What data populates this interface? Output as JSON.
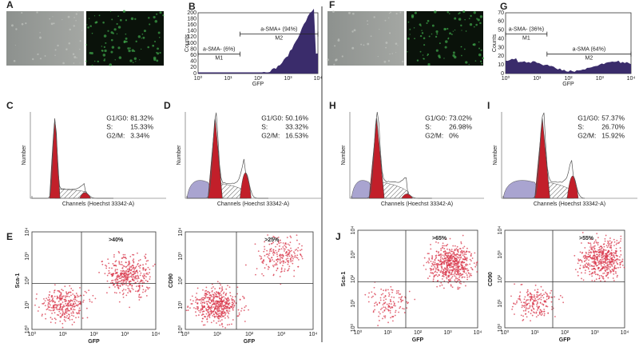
{
  "panels": [
    {
      "type": "images",
      "letter": "A"
    },
    {
      "type": "histogram",
      "letter": "B",
      "ylabel": "Counts",
      "xlabel": "GFP",
      "yticks": [
        "0",
        "20",
        "40",
        "60",
        "80",
        "100",
        "120",
        "140",
        "160",
        "180",
        "200"
      ],
      "xticks": [
        "10⁰",
        "10¹",
        "10²",
        "10³",
        "10⁴"
      ],
      "gates": [
        {
          "label": "a-SMA- (6%)",
          "marker": "M1"
        },
        {
          "label": "a-SMA+ (94%)",
          "marker": "M2"
        }
      ]
    },
    {
      "type": "cellcycle",
      "letter": "C",
      "ylabel": "Number",
      "xlabel": "Channels (Hoechst 33342-A)",
      "stats": [
        [
          "G1/G0:",
          "81.32%"
        ],
        [
          "S:",
          "15.33%"
        ],
        [
          "G2/M:",
          "3.34%"
        ]
      ]
    },
    {
      "type": "cellcycle",
      "letter": "D",
      "ylabel": "Number",
      "xlabel": "Channels (Hoechst 33342-A)",
      "stats": [
        [
          "G1/G0:",
          "50.16%"
        ],
        [
          "S:",
          "33.32%"
        ],
        [
          "G2/M:",
          "16.53%"
        ]
      ]
    },
    {
      "type": "scatter",
      "letter": "E",
      "ylabel": "Sca-1",
      "xlabel": "GFP",
      "quadrant": ">40%",
      "xticks": [
        "10⁰",
        "10¹",
        "10²",
        "10³",
        "10⁴"
      ],
      "yticks": [
        "10⁰",
        "10¹",
        "10²",
        "10³",
        "10⁴"
      ]
    },
    {
      "type": "scatter",
      "ylabel": "CD90",
      "xlabel": "GFP",
      "quadrant": ">25%",
      "xticks": [
        "10⁰",
        "10¹",
        "10²",
        "10³",
        "10⁴"
      ],
      "yticks": [
        "10⁰",
        "10¹",
        "10²",
        "10³",
        "10⁴"
      ]
    },
    {
      "type": "images",
      "letter": "F"
    },
    {
      "type": "histogram",
      "letter": "G",
      "ylabel": "Counts",
      "xlabel": "GFP",
      "yticks": [
        "0",
        "10",
        "20",
        "30",
        "40",
        "50",
        "60",
        "70"
      ],
      "xticks": [
        "10⁰",
        "10¹",
        "10²",
        "10³",
        "10⁴"
      ],
      "gates": [
        {
          "label": "a-SMA- (36%)",
          "marker": "M1"
        },
        {
          "label": "a-SMA (64%)",
          "marker": "M2"
        }
      ]
    },
    {
      "type": "cellcycle",
      "letter": "H",
      "ylabel": "Number",
      "xlabel": "Channels (Hoechst 33342-A)",
      "stats": [
        [
          "G1/G0:",
          "73.02%"
        ],
        [
          "S:",
          "26.98%"
        ],
        [
          "G2/M:",
          "0%"
        ]
      ]
    },
    {
      "type": "cellcycle",
      "letter": "I",
      "ylabel": "Number",
      "xlabel": "Channels (Hoechst 33342-A)",
      "stats": [
        [
          "G1/G0:",
          "57.37%"
        ],
        [
          "S:",
          "26.70%"
        ],
        [
          "G2/M:",
          "15.92%"
        ]
      ]
    },
    {
      "type": "scatter",
      "letter": "J",
      "ylabel": "Sca-1",
      "xlabel": "GFP",
      "quadrant": ">65%",
      "xticks": [
        "10⁰",
        "10¹",
        "10²",
        "10³",
        "10⁴"
      ],
      "yticks": [
        "10⁰",
        "10¹",
        "10²",
        "10³",
        "10⁴"
      ]
    },
    {
      "type": "scatter",
      "ylabel": "CD90",
      "xlabel": "GFP",
      "quadrant": ">55%",
      "xticks": [
        "10⁰",
        "10¹",
        "10²",
        "10³",
        "10⁴"
      ],
      "yticks": [
        "10⁰",
        "10¹",
        "10²",
        "10³",
        "10⁴"
      ]
    }
  ]
}
